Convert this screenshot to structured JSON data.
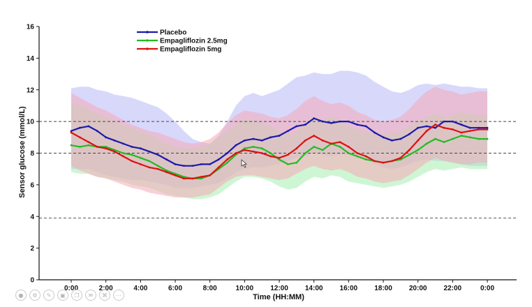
{
  "chart_data": {
    "type": "line",
    "title": "",
    "xlabel": "Time (HH:MM)",
    "ylabel": "Sensor glucose (mmol/L)",
    "x_ticks": [
      "0:00",
      "2:00",
      "4:00",
      "6:00",
      "8:00",
      "10:00",
      "12:00",
      "14:00",
      "16:00",
      "18:00",
      "20:00",
      "22:00",
      "0:00"
    ],
    "x_range_hours": [
      0,
      24
    ],
    "ylim": [
      0,
      16
    ],
    "y_ticks": [
      0,
      2,
      4,
      6,
      8,
      10,
      12,
      14,
      16
    ],
    "reference_lines": [
      3.9,
      8,
      10
    ],
    "legend_position": "top-left",
    "x_hours": [
      0,
      0.5,
      1,
      1.5,
      2,
      2.5,
      3,
      3.5,
      4,
      4.5,
      5,
      5.5,
      6,
      6.5,
      7,
      7.5,
      8,
      8.5,
      9,
      9.5,
      10,
      10.5,
      11,
      11.5,
      12,
      12.5,
      13,
      13.5,
      14,
      14.5,
      15,
      15.5,
      16,
      16.5,
      17,
      17.5,
      18,
      18.5,
      19,
      19.5,
      20,
      20.5,
      21,
      21.5,
      22,
      22.5,
      23,
      23.5,
      24
    ],
    "series": [
      {
        "name": "Placebo",
        "color": "#1a1aaa",
        "band_color": "#b8b8f8",
        "values": [
          9.4,
          9.6,
          9.7,
          9.4,
          9.0,
          8.8,
          8.6,
          8.4,
          8.3,
          8.1,
          7.9,
          7.6,
          7.3,
          7.2,
          7.2,
          7.3,
          7.3,
          7.6,
          8.0,
          8.5,
          8.8,
          8.9,
          8.8,
          9.0,
          9.1,
          9.4,
          9.7,
          9.8,
          10.2,
          10.0,
          9.9,
          10.0,
          10.0,
          9.8,
          9.7,
          9.3,
          9.0,
          8.8,
          8.9,
          9.2,
          9.6,
          9.7,
          9.6,
          10.0,
          10.0,
          9.8,
          9.6,
          9.6,
          9.6
        ],
        "upper": [
          12.1,
          12.2,
          12.2,
          12.0,
          11.9,
          11.7,
          11.6,
          11.5,
          11.3,
          11.1,
          10.9,
          10.5,
          10.0,
          9.4,
          8.9,
          8.7,
          8.6,
          9.1,
          10.0,
          11.0,
          11.6,
          11.8,
          11.6,
          11.8,
          12.0,
          12.4,
          12.8,
          12.9,
          13.1,
          13.0,
          13.0,
          13.2,
          13.2,
          13.1,
          12.9,
          12.5,
          12.2,
          11.9,
          11.8,
          12.0,
          12.3,
          12.4,
          12.3,
          12.4,
          12.3,
          12.2,
          12.2,
          12.1,
          12.1
        ],
        "lower": [
          7.0,
          7.0,
          7.0,
          6.8,
          6.6,
          6.5,
          6.4,
          6.3,
          6.3,
          6.2,
          6.1,
          6.0,
          5.8,
          5.8,
          5.8,
          5.9,
          6.0,
          6.1,
          6.4,
          6.8,
          7.0,
          7.1,
          7.1,
          7.2,
          7.3,
          7.5,
          7.7,
          7.8,
          8.0,
          7.9,
          7.8,
          7.9,
          7.9,
          7.7,
          7.6,
          7.3,
          7.1,
          7.0,
          7.1,
          7.3,
          7.5,
          7.6,
          7.5,
          7.5,
          7.4,
          7.3,
          7.2,
          7.2,
          7.2
        ]
      },
      {
        "name": "Empagliflozin 2.5mg",
        "color": "#22bb22",
        "band_color": "#a8eeb0",
        "values": [
          8.5,
          8.4,
          8.5,
          8.4,
          8.4,
          8.2,
          8.0,
          7.9,
          7.7,
          7.5,
          7.2,
          6.9,
          6.7,
          6.5,
          6.4,
          6.4,
          6.6,
          7.0,
          7.4,
          7.9,
          8.3,
          8.4,
          8.3,
          8.0,
          7.6,
          7.3,
          7.4,
          8.0,
          8.4,
          8.2,
          8.6,
          8.4,
          8.0,
          7.8,
          7.6,
          7.5,
          7.4,
          7.5,
          7.6,
          7.9,
          8.2,
          8.6,
          8.9,
          8.7,
          8.9,
          9.1,
          9.0,
          8.9,
          8.9
        ],
        "upper": [
          11.2,
          11.0,
          10.8,
          10.5,
          10.3,
          10.0,
          9.8,
          9.6,
          9.4,
          9.2,
          8.9,
          8.6,
          8.4,
          8.3,
          8.3,
          8.4,
          8.6,
          9.0,
          9.4,
          9.8,
          10.1,
          10.1,
          9.9,
          9.7,
          9.4,
          9.2,
          9.4,
          9.9,
          10.3,
          10.1,
          10.3,
          10.1,
          9.7,
          9.5,
          9.4,
          9.3,
          9.2,
          9.3,
          9.4,
          9.7,
          10.0,
          10.3,
          10.5,
          10.3,
          10.4,
          10.6,
          10.5,
          10.4,
          10.4
        ],
        "lower": [
          6.8,
          6.7,
          6.7,
          6.5,
          6.4,
          6.3,
          6.2,
          6.0,
          5.9,
          5.8,
          5.6,
          5.4,
          5.3,
          5.2,
          5.1,
          5.1,
          5.2,
          5.4,
          5.8,
          6.2,
          6.5,
          6.5,
          6.4,
          6.2,
          5.9,
          5.7,
          5.8,
          6.2,
          6.5,
          6.4,
          6.6,
          6.5,
          6.2,
          6.1,
          6.0,
          5.9,
          5.8,
          5.9,
          6.0,
          6.2,
          6.5,
          6.8,
          7.0,
          6.9,
          7.0,
          7.1,
          7.0,
          7.0,
          7.0
        ]
      },
      {
        "name": "Empagliflozin 5mg",
        "color": "#dd1111",
        "band_color": "#f6aab8",
        "values": [
          9.3,
          9.0,
          8.7,
          8.4,
          8.3,
          8.1,
          7.8,
          7.5,
          7.3,
          7.1,
          7.0,
          6.8,
          6.6,
          6.4,
          6.4,
          6.5,
          6.6,
          7.1,
          7.6,
          8.0,
          8.2,
          8.1,
          8.0,
          7.8,
          7.7,
          7.9,
          8.3,
          8.8,
          9.1,
          8.8,
          8.6,
          8.7,
          8.4,
          8.0,
          7.8,
          7.5,
          7.4,
          7.5,
          7.7,
          8.2,
          8.8,
          9.4,
          9.8,
          9.6,
          9.5,
          9.3,
          9.4,
          9.5,
          9.5
        ],
        "upper": [
          11.8,
          11.5,
          11.2,
          10.9,
          10.7,
          10.4,
          10.1,
          9.8,
          9.6,
          9.4,
          9.3,
          9.1,
          8.9,
          8.7,
          8.6,
          8.7,
          8.9,
          9.3,
          9.9,
          10.4,
          10.7,
          10.6,
          10.5,
          10.3,
          10.2,
          10.4,
          10.8,
          11.3,
          11.6,
          11.3,
          11.1,
          11.2,
          11.0,
          10.6,
          10.4,
          10.1,
          10.0,
          10.1,
          10.3,
          10.8,
          11.4,
          11.9,
          12.2,
          12.0,
          11.9,
          11.7,
          11.8,
          11.9,
          11.9
        ],
        "lower": [
          7.2,
          6.9,
          6.7,
          6.5,
          6.4,
          6.2,
          6.0,
          5.8,
          5.7,
          5.5,
          5.4,
          5.3,
          5.2,
          5.2,
          5.2,
          5.3,
          5.4,
          5.8,
          6.2,
          6.5,
          6.6,
          6.6,
          6.5,
          6.4,
          6.3,
          6.4,
          6.7,
          7.0,
          7.2,
          7.0,
          6.9,
          7.0,
          6.8,
          6.5,
          6.4,
          6.2,
          6.1,
          6.2,
          6.3,
          6.6,
          7.0,
          7.4,
          7.7,
          7.5,
          7.4,
          7.3,
          7.3,
          7.4,
          7.4
        ]
      }
    ]
  },
  "player": {
    "icons": [
      "record-icon",
      "settings-icon",
      "pencil-icon",
      "screenshot-icon",
      "copy-icon",
      "chat-icon",
      "link-icon",
      "more-icon"
    ],
    "glyphs": [
      "●",
      "⚙",
      "✎",
      "▣",
      "❐",
      "✉",
      "⌘",
      "⋯"
    ]
  }
}
